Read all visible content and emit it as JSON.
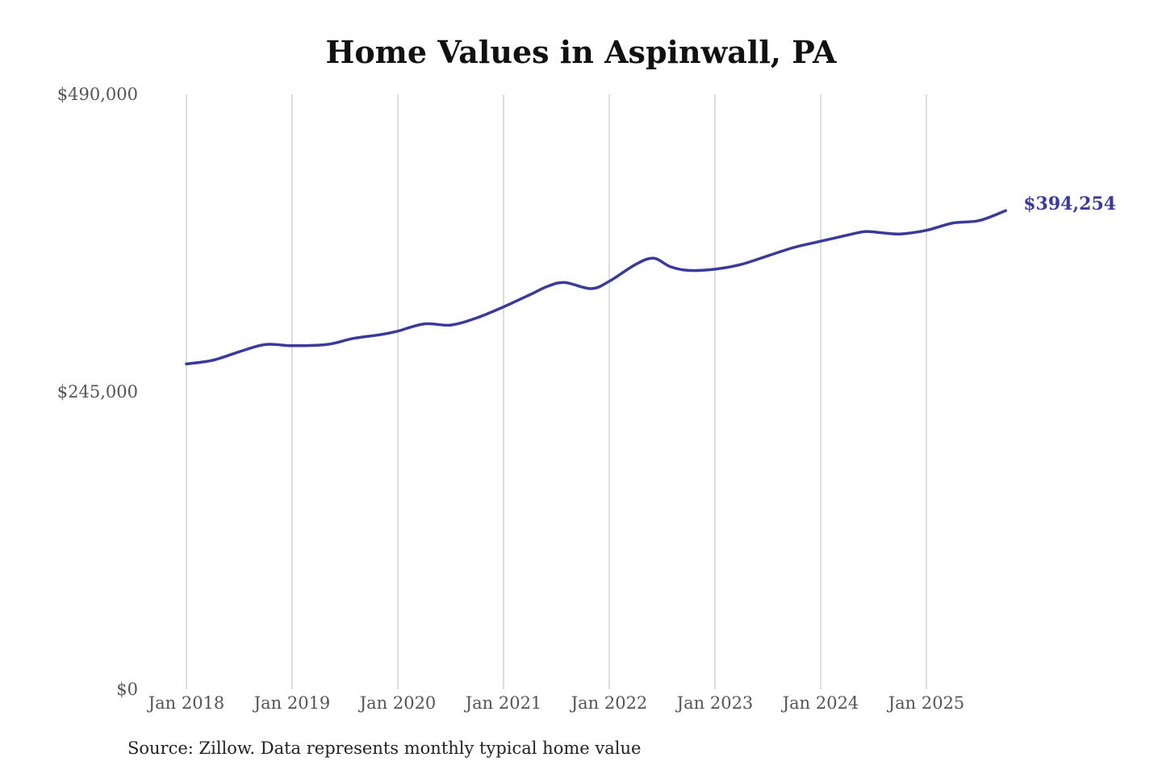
{
  "chart_data": {
    "type": "line",
    "title": "Home Values in Aspinwall, PA",
    "xlabel": "",
    "ylabel": "",
    "ylim": [
      0,
      490000
    ],
    "y_ticks": [
      {
        "value": 0,
        "label": "$0"
      },
      {
        "value": 245000,
        "label": "$245,000"
      },
      {
        "value": 490000,
        "label": "$490,000"
      }
    ],
    "x_ticks": [
      {
        "value": 2018.0,
        "label": "Jan 2018"
      },
      {
        "value": 2019.0,
        "label": "Jan 2019"
      },
      {
        "value": 2020.0,
        "label": "Jan 2020"
      },
      {
        "value": 2021.0,
        "label": "Jan 2021"
      },
      {
        "value": 2022.0,
        "label": "Jan 2022"
      },
      {
        "value": 2023.0,
        "label": "Jan 2023"
      },
      {
        "value": 2024.0,
        "label": "Jan 2024"
      },
      {
        "value": 2025.0,
        "label": "Jan 2025"
      }
    ],
    "xlim": [
      2018.0,
      2025.75
    ],
    "grid": "vertical",
    "line_color": "#3a3a9a",
    "series": [
      {
        "x": [
          2018.0,
          2018.25,
          2018.5,
          2018.75,
          2019.0,
          2019.33,
          2019.58,
          2019.83,
          2020.0,
          2020.25,
          2020.5,
          2020.75,
          2021.0,
          2021.25,
          2021.42,
          2021.58,
          2021.83,
          2022.0,
          2022.25,
          2022.42,
          2022.58,
          2022.75,
          2023.0,
          2023.25,
          2023.5,
          2023.75,
          2024.0,
          2024.25,
          2024.42,
          2024.58,
          2024.75,
          2025.0,
          2025.25,
          2025.5,
          2025.75
        ],
        "values": [
          268000,
          271000,
          278000,
          284000,
          283000,
          284000,
          289000,
          292000,
          295000,
          301000,
          300000,
          306000,
          315000,
          325000,
          332000,
          335000,
          330000,
          336000,
          350000,
          355000,
          348000,
          345000,
          346000,
          350000,
          357000,
          364000,
          369000,
          374000,
          377000,
          376000,
          375000,
          378000,
          384000,
          386000,
          394254
        ]
      }
    ],
    "end_label": "$394,254",
    "source": "Source: Zillow. Data represents monthly typical home value"
  }
}
